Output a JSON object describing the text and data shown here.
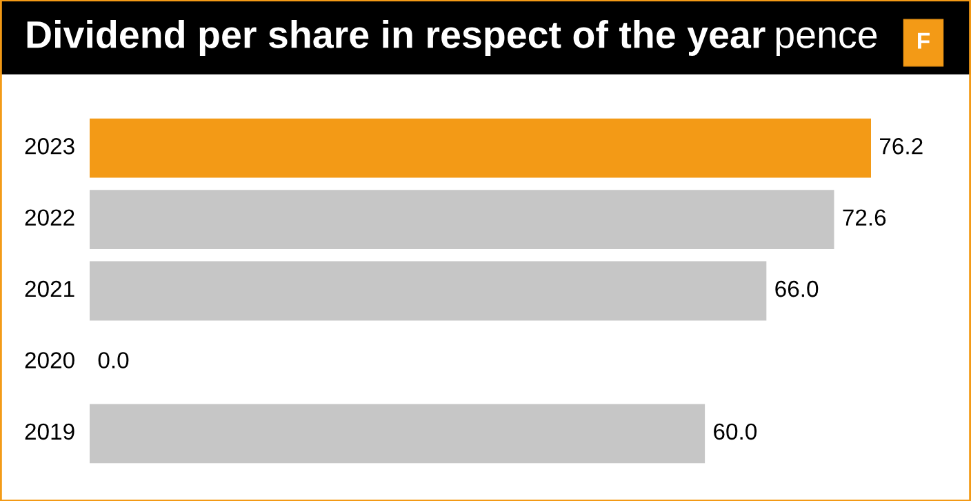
{
  "chart_data": {
    "type": "bar",
    "orientation": "horizontal",
    "title": "Dividend per share in respect of the year",
    "subtitle": "pence",
    "categories": [
      "2023",
      "2022",
      "2021",
      "2020",
      "2019"
    ],
    "values": [
      76.2,
      72.6,
      66.0,
      0.0,
      60.0
    ],
    "colors": [
      "#f39a16",
      "#c6c6c6",
      "#c6c6c6",
      "#c6c6c6",
      "#c6c6c6"
    ],
    "value_labels": [
      "76.2",
      "72.6",
      "66.0",
      "0.0",
      "60.0"
    ],
    "annotations": [
      "F"
    ]
  }
}
